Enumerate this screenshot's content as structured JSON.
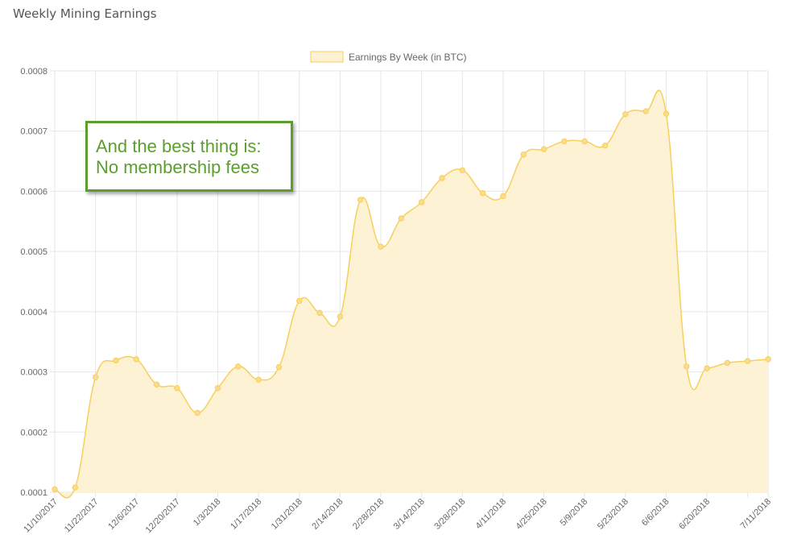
{
  "page": {
    "title": "Weekly Mining Earnings"
  },
  "callout": {
    "line1": "And the best thing is:",
    "line2": "No membership fees"
  },
  "colors": {
    "line": "#f7cf5c",
    "fill": "#fdf2d3",
    "point": "#f9dd8c",
    "grid": "#e6e6e6"
  },
  "chart_data": {
    "type": "area",
    "title": "",
    "xlabel": "",
    "ylabel": "",
    "legend": {
      "label": "Earnings By Week (in BTC)",
      "position": "top"
    },
    "ylim": [
      0.0001,
      0.0008
    ],
    "yticks": [
      "0.0001",
      "0.0002",
      "0.0003",
      "0.0004",
      "0.0005",
      "0.0006",
      "0.0007",
      "0.0008"
    ],
    "xticks": [
      "11/10/2017",
      "11/22/2017",
      "12/6/2017",
      "12/20/2017",
      "1/3/2018",
      "1/17/2018",
      "1/31/2018",
      "2/14/2018",
      "2/28/2018",
      "3/14/2018",
      "3/28/2018",
      "4/11/2018",
      "4/25/2018",
      "5/9/2018",
      "5/23/2018",
      "6/6/2018",
      "6/20/2018",
      "7/11/2018"
    ],
    "grid": true,
    "series": [
      {
        "name": "Earnings By Week (in BTC)",
        "values": [
          0.000105,
          0.000108,
          0.000291,
          0.000319,
          0.000321,
          0.000279,
          0.000273,
          0.000232,
          0.000273,
          0.000309,
          0.000287,
          0.000308,
          0.000418,
          0.000398,
          0.000392,
          0.000586,
          0.000508,
          0.000555,
          0.000582,
          0.000622,
          0.000635,
          0.000597,
          0.000592,
          0.000661,
          0.00067,
          0.000683,
          0.000683,
          0.000676,
          0.000728,
          0.000733,
          0.000729,
          0.000309,
          0.000306,
          0.000315,
          0.000318,
          0.000321
        ]
      }
    ]
  }
}
